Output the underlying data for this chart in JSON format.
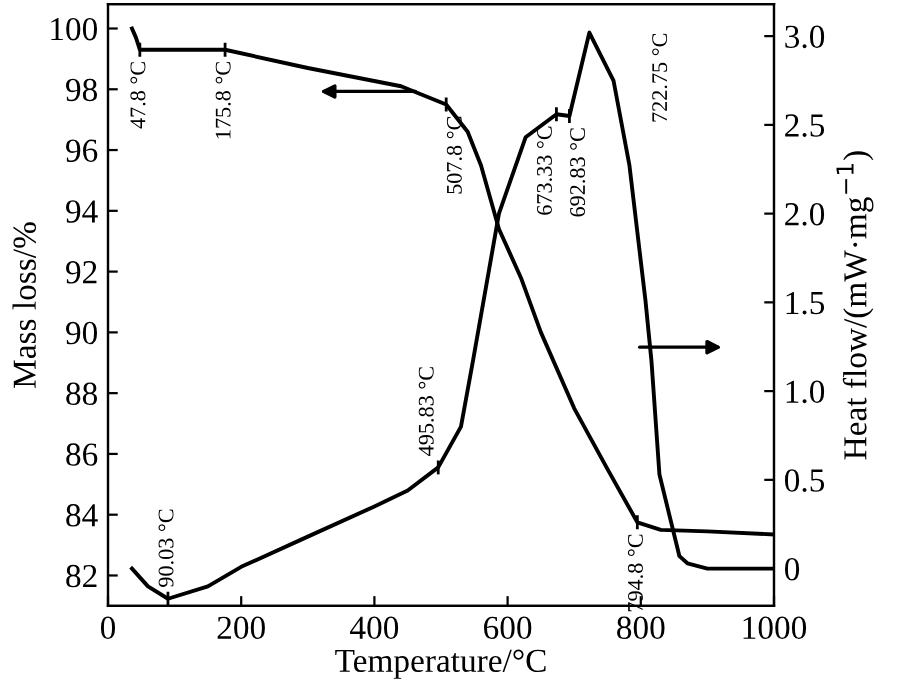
{
  "chart_data": {
    "type": "line",
    "xlabel": "Temperature/°C",
    "ylabel": "Mass loss/%",
    "y2label": "Heat flow/(mW·mg$^{−1}$)",
    "xlim": [
      0,
      1000
    ],
    "xticks": [
      0,
      200,
      400,
      600,
      800,
      1000
    ],
    "ylim": [
      81,
      100.8
    ],
    "yticks": [
      82,
      84,
      86,
      88,
      90,
      92,
      94,
      96,
      98,
      100
    ],
    "y2lim": [
      -0.21,
      3.18
    ],
    "y2ticks": [
      0,
      0.5,
      {
        "value": 1,
        "label": "1.0"
      },
      1.5,
      {
        "value": 2,
        "label": "2.0"
      },
      2.5,
      {
        "value": 3,
        "label": "3.0"
      }
    ],
    "series": [
      {
        "color": "#000000",
        "x": [
          36,
          42,
          47.8,
          100,
          175.8,
          300,
          440,
          507.8,
          540,
          560,
          587,
          620,
          650,
          700,
          750,
          794.8,
          830,
          900,
          1000
        ],
        "values": [
          100,
          99.7,
          99.3,
          99.3,
          99.3,
          98.7,
          98.1,
          97.5,
          96.6,
          95.5,
          93.4,
          91.8,
          90.0,
          87.5,
          85.5,
          83.75,
          83.5,
          83.45,
          83.35
        ]
      },
      {
        "color": "#000000",
        "axis": "y2",
        "x": [
          36,
          60,
          90.03,
          150,
          200,
          300,
          400,
          450,
          495.83,
          530,
          548,
          587,
          627,
          673.33,
          692.83,
          722.75,
          759,
          783,
          807,
          816,
          828,
          858,
          870,
          900,
          1000
        ],
        "values": [
          0.0,
          -0.1,
          -0.17,
          -0.1,
          0.01,
          0.18,
          0.35,
          0.44,
          0.57,
          0.8,
          1.17,
          2.0,
          2.43,
          2.56,
          2.55,
          3.02,
          2.75,
          2.27,
          1.51,
          1.17,
          0.53,
          0.07,
          0.03,
          0.0,
          0.0
        ]
      }
    ],
    "annotations": [
      {
        "text": "47.8 °C",
        "x": 47.8,
        "y": 99.3
      },
      {
        "text": "175.8 °C",
        "x": 175.8,
        "y": 99.3
      },
      {
        "text": "507.8 °C",
        "x": 507.8,
        "y": 97.5
      },
      {
        "text": "673.33 °C",
        "x": 673.33
      },
      {
        "text": "692.83 °C",
        "x": 692.83
      },
      {
        "text": "722.75 °C",
        "x": 722.75
      },
      "90.03 °C",
      {
        "text": "495.83 °C",
        "x": 495.83
      },
      {
        "text": "794.8 °C",
        "x": 794.8,
        "y": 83.75
      }
    ],
    "grid": false
  }
}
